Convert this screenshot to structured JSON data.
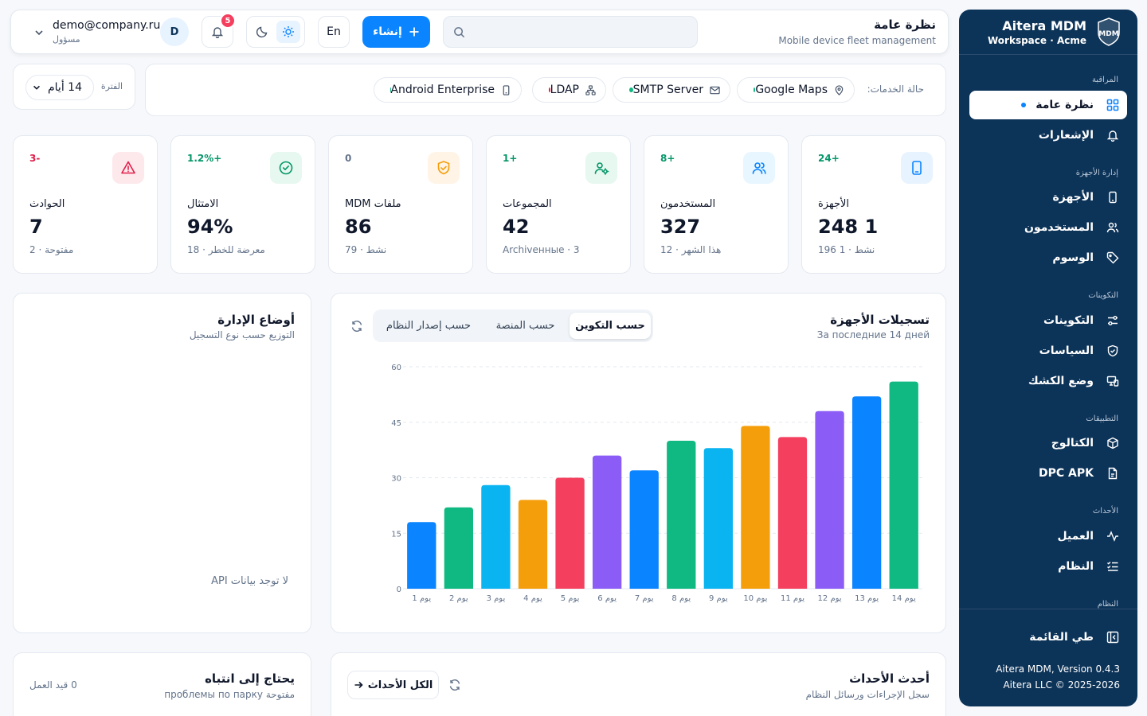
{
  "sidebar": {
    "title": "Aitera MDM",
    "subtitle": "Workspace · Acme",
    "sections": {
      "monitoring": "المراقبة",
      "device_mgmt": "إدارة الأجهزة",
      "configurations": "التكوينات",
      "apps": "التطبيقات",
      "events": "الأحداث",
      "system": "النظام"
    },
    "items": {
      "overview": "نظرة عامة",
      "notifications": "الإشعارات",
      "devices": "الأجهزة",
      "users": "المستخدمون",
      "tags": "الوسوم",
      "configs": "التكوينات",
      "policies": "السياسات",
      "kiosk": "وضع الكشك",
      "catalog": "الكتالوج",
      "dpc": "DPC APK",
      "client": "العميل",
      "system": "النظام"
    },
    "collapse": "طي القائمة",
    "version": "Aitera MDM, Version 0.4.3",
    "copyright": "Aitera LLC © 2025-2026"
  },
  "header": {
    "title": "نظرة عامة",
    "subtitle": "Mobile device fleet management",
    "create_label": "إنشاء",
    "lang": "En",
    "notif_count": "5",
    "avatar": "D",
    "user_email": "demo@company.ru",
    "user_role": "مسؤول",
    "search_placeholder": ""
  },
  "services": {
    "label": "حالة الخدمات:",
    "items": [
      {
        "name": "Google Maps",
        "status_color": "#10b981"
      },
      {
        "name": "SMTP Server",
        "status_color": "#10b981"
      },
      {
        "name": "LDAP",
        "status_color": "#e11d48"
      },
      {
        "name": "Android Enterprise",
        "status_color": "#10b981"
      }
    ]
  },
  "period": {
    "label": "الفترة",
    "value": "14 أيام"
  },
  "stats": [
    {
      "label": "الأجهزة",
      "value": "248 1",
      "sub": "196 1 · نشط",
      "delta": "24+",
      "delta_color": "#059669",
      "icon": "phone-icon",
      "icon_bg": "#e7f3ff",
      "icon_color": "#0b84ff"
    },
    {
      "label": "المستخدمون",
      "value": "327",
      "sub": "12 · هذا الشهر",
      "delta": "8+",
      "delta_color": "#059669",
      "icon": "users-icon",
      "icon_bg": "#e7f6ff",
      "icon_color": "#0b84ff"
    },
    {
      "label": "المجموعات",
      "value": "42",
      "sub": "Archivенные · 3",
      "delta": "1+",
      "delta_color": "#059669",
      "icon": "group-settings-icon",
      "icon_bg": "#e6f8ef",
      "icon_color": "#059669"
    },
    {
      "label": "MDM ملفات",
      "value": "86",
      "sub": "79 · نشط",
      "delta": "0",
      "delta_color": "#64748b",
      "icon": "shield-icon",
      "icon_bg": "#fff4e5",
      "icon_color": "#f59e0b"
    },
    {
      "label": "الامتثال",
      "value": "94%",
      "sub": "18 · معرضة للخطر",
      "delta": "1.2%+",
      "delta_color": "#059669",
      "icon": "check-circle-icon",
      "icon_bg": "#e6f8ef",
      "icon_color": "#059669"
    },
    {
      "label": "الحوادث",
      "value": "7",
      "sub": "2 · مفتوحة",
      "delta": "3-",
      "delta_color": "#e11d48",
      "icon": "alert-icon",
      "icon_bg": "#fde8ec",
      "icon_color": "#e11d48"
    }
  ],
  "enrollments": {
    "title": "تسجيلات الأجهزة",
    "subtitle": "За последние 14 дней",
    "tabs": [
      "حسب التكوين",
      "حسب المنصة",
      "حسب إصدار النظام"
    ]
  },
  "chart_data": {
    "type": "bar",
    "categories": [
      "يوم 1",
      "يوم 2",
      "يوم 3",
      "يوم 4",
      "يوم 5",
      "يوم 6",
      "يوم 7",
      "يوم 8",
      "يوم 9",
      "يوم 10",
      "يوم 11",
      "يوم 12",
      "يوم 13",
      "يوم 14"
    ],
    "values": [
      18,
      22,
      28,
      24,
      30,
      36,
      32,
      40,
      38,
      44,
      41,
      48,
      52,
      56
    ],
    "colors": [
      "#0b84ff",
      "#10b981",
      "#0ab4f0",
      "#f59e0b",
      "#f43f5e",
      "#8b5cf6",
      "#0b84ff",
      "#10b981",
      "#0ab4f0",
      "#f59e0b",
      "#f43f5e",
      "#8b5cf6",
      "#0b84ff",
      "#10b981"
    ],
    "yticks": [
      "0",
      "15",
      "30",
      "45",
      "60"
    ],
    "ylim": [
      0,
      60
    ],
    "grid": true
  },
  "mgmt_modes": {
    "title": "أوضاع الإدارة",
    "subtitle": "التوزيع حسب نوع التسجيل",
    "empty": "لا توجد بيانات API"
  },
  "events": {
    "title": "أحدث الأحداث",
    "subtitle": "سجل الإجراءات ورسائل النظام",
    "all_label": "الكل الأحداث"
  },
  "attention": {
    "title": "يحتاج إلى انتباه",
    "subtitle": "проблемы по парку مفتوحة",
    "count": "0 قيد العمل"
  }
}
